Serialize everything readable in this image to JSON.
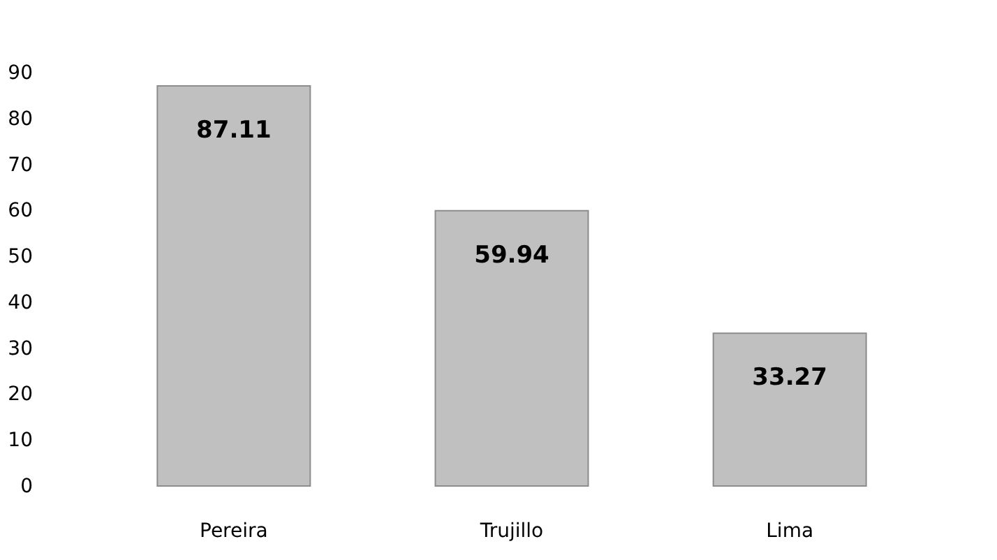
{
  "chart_data": {
    "type": "bar",
    "categories": [
      "Pereira",
      "Trujillo",
      "Lima"
    ],
    "values": [
      87.11,
      59.94,
      33.27
    ],
    "color": "#c0c0c0",
    "ylim": [
      0,
      90
    ],
    "yticks": [
      0,
      10,
      20,
      30,
      40,
      50,
      60,
      70,
      80,
      90
    ],
    "grid": false,
    "data_labels": true
  }
}
